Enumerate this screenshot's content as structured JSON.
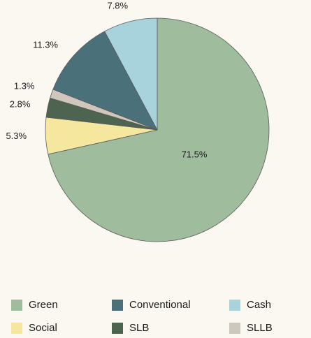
{
  "chart_data": {
    "type": "pie",
    "slices": [
      {
        "label": "Green",
        "value": 71.5,
        "display": "71.5%",
        "color": "#9fbc9d"
      },
      {
        "label": "Social",
        "value": 5.3,
        "display": "5.3%",
        "color": "#f5e79e"
      },
      {
        "label": "SLB",
        "value": 2.8,
        "display": "2.8%",
        "color": "#4d6450"
      },
      {
        "label": "SLLB",
        "value": 1.3,
        "display": "1.3%",
        "color": "#cfc7bc"
      },
      {
        "label": "Conventional",
        "value": 11.3,
        "display": "11.3%",
        "color": "#4a717a"
      },
      {
        "label": "Cash",
        "value": 7.8,
        "display": "7.8%",
        "color": "#a9d3dc"
      }
    ],
    "legend_position": "bottom",
    "legend": [
      {
        "label": "Green",
        "color": "#9fbc9d"
      },
      {
        "label": "Conventional",
        "color": "#4a717a"
      },
      {
        "label": "Cash",
        "color": "#a9d3dc"
      },
      {
        "label": "Social",
        "color": "#f5e79e"
      },
      {
        "label": "SLB",
        "color": "#4d6450"
      },
      {
        "label": "SLLB",
        "color": "#cfc7bc"
      }
    ]
  }
}
